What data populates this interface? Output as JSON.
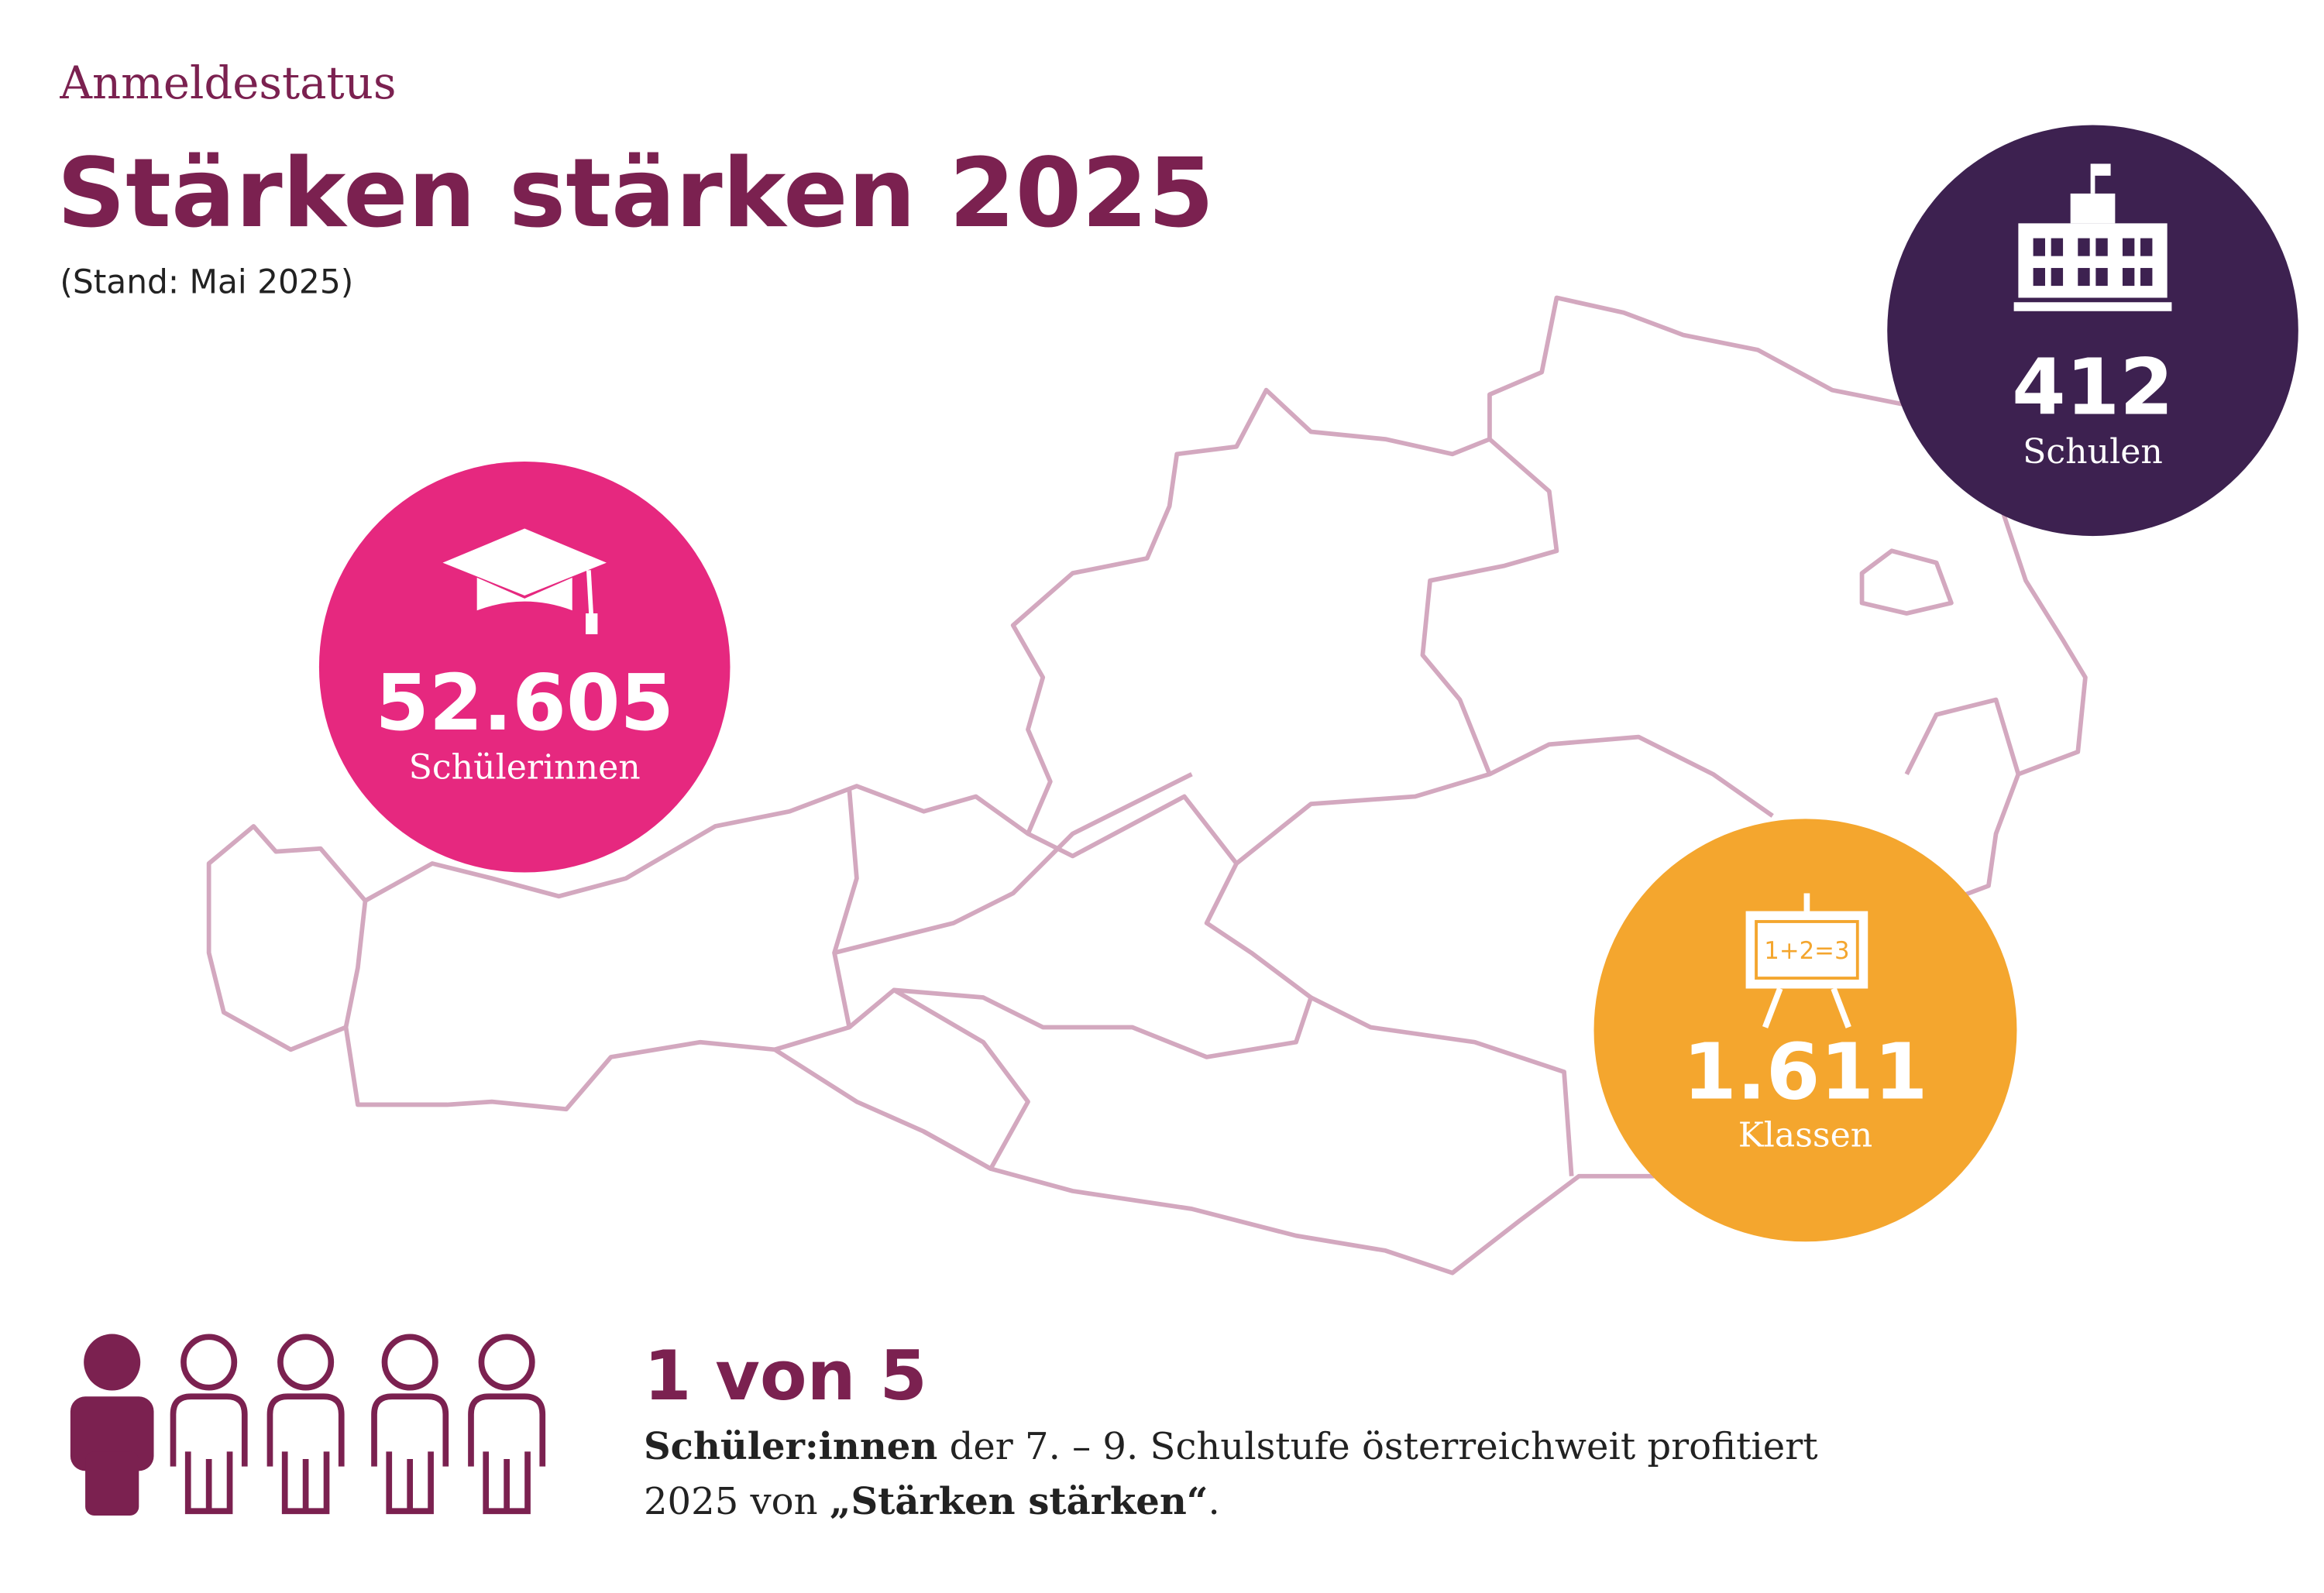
{
  "header": {
    "kicker": "Anmeldestatus",
    "title": "Stärken stärken 2025",
    "subtitle": "(Stand: Mai 2025)"
  },
  "stats": [
    {
      "value": "52.605",
      "label": "Schülerinnen"
    },
    {
      "value": "412",
      "label": "Schulen"
    },
    {
      "value": "1.611",
      "label": "Klassen"
    }
  ],
  "board_text": "1+2=3",
  "footer": {
    "headline": "1 von 5",
    "text": [
      {
        "text": "Schüler:innen",
        "bold": true
      },
      {
        "text": " der 7. – 9. Schulstufe österreichweit profitiert",
        "bold": false
      },
      {
        "text": "2025 von ",
        "bold": false
      },
      {
        "text": "„Stärken stärken“",
        "bold": true
      },
      {
        "text": ".",
        "bold": false
      }
    ]
  }
}
